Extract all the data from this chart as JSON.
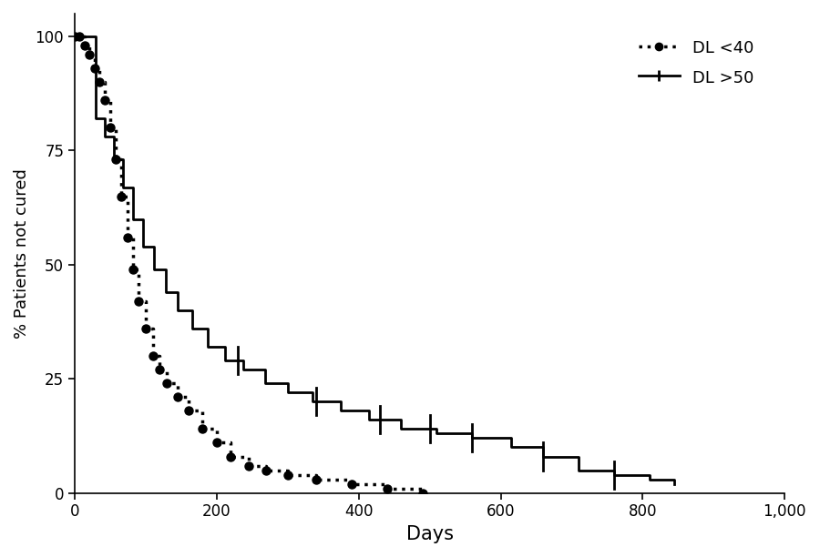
{
  "title": "",
  "xlabel": "Days",
  "ylabel": "% Patients not cured",
  "xlim": [
    0,
    1000
  ],
  "ylim": [
    0,
    105
  ],
  "xticks": [
    0,
    200,
    400,
    600,
    800,
    1000
  ],
  "xticklabels": [
    "0",
    "200",
    "400",
    "600",
    "800",
    "1,000"
  ],
  "yticks": [
    0,
    25,
    50,
    75,
    100
  ],
  "yticklabels": [
    "0",
    "25",
    "50",
    "75",
    "100"
  ],
  "background_color": "#ffffff",
  "line_color": "#000000",
  "dl_lt40_times": [
    0,
    7,
    14,
    21,
    28,
    35,
    42,
    50,
    58,
    66,
    74,
    82,
    90,
    100,
    110,
    120,
    130,
    145,
    160,
    180,
    200,
    220,
    245,
    270,
    300,
    340,
    390,
    440,
    490
  ],
  "dl_lt40_surv": [
    100,
    100,
    98,
    96,
    93,
    90,
    86,
    80,
    73,
    65,
    56,
    49,
    42,
    36,
    30,
    27,
    24,
    21,
    18,
    14,
    11,
    8,
    6,
    5,
    4,
    3,
    2,
    1,
    0
  ],
  "dl_gt50_times": [
    0,
    20,
    30,
    42,
    55,
    68,
    82,
    96,
    112,
    128,
    145,
    165,
    188,
    212,
    238,
    268,
    300,
    335,
    375,
    415,
    460,
    510,
    560,
    615,
    660,
    710,
    760,
    810,
    845
  ],
  "dl_gt50_surv": [
    100,
    100,
    82,
    78,
    73,
    67,
    60,
    54,
    49,
    44,
    40,
    36,
    32,
    29,
    27,
    24,
    22,
    20,
    18,
    16,
    14,
    13,
    12,
    10,
    8,
    5,
    4,
    3,
    2
  ]
}
